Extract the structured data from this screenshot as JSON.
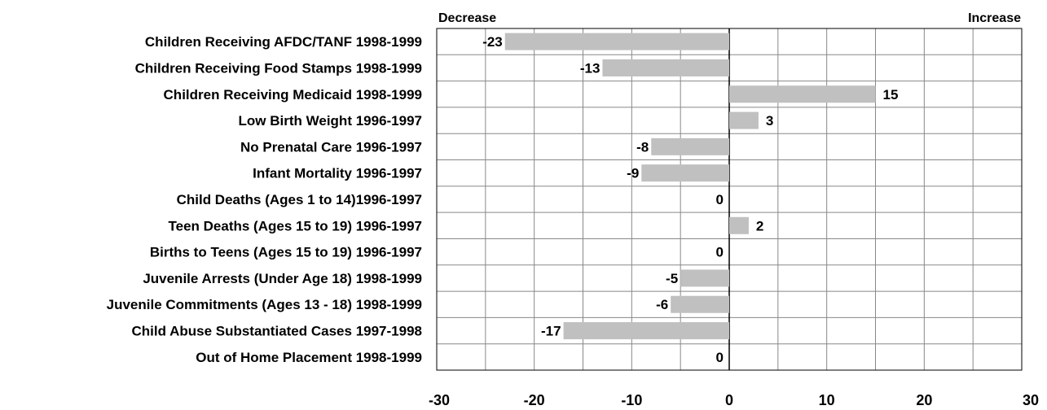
{
  "chart_data": {
    "type": "bar",
    "orientation": "horizontal",
    "categories": [
      "Children Receiving AFDC/TANF 1998-1999",
      "Children Receiving Food Stamps 1998-1999",
      "Children Receiving Medicaid 1998-1999",
      "Low Birth Weight 1996-1997",
      "No Prenatal Care 1996-1997",
      "Infant Mortality 1996-1997",
      "Child Deaths (Ages 1 to 14)1996-1997",
      "Teen Deaths (Ages 15 to 19) 1996-1997",
      "Births to Teens (Ages 15 to 19) 1996-1997",
      "Juvenile Arrests (Under Age 18) 1998-1999",
      "Juvenile Commitments (Ages 13 - 18) 1998-1999",
      "Child Abuse Substantiated Cases 1997-1998",
      "Out of Home Placement 1998-1999"
    ],
    "values": [
      -23,
      -13,
      15,
      3,
      -8,
      -9,
      0,
      2,
      0,
      -5,
      -6,
      -17,
      0
    ],
    "data_labels": [
      "-23",
      "-13",
      "15",
      "3",
      "-8",
      "-9",
      "0",
      "2",
      "0",
      "-5",
      "-6",
      "-17",
      "0"
    ],
    "xlim": [
      -30,
      30
    ],
    "x_ticks": [
      -30,
      -20,
      -10,
      0,
      10,
      20,
      30
    ],
    "x_tick_labels": [
      "-30",
      "-20",
      "-10",
      "0",
      "10",
      "20",
      "30"
    ],
    "x_minor_gridline_step": 5,
    "grid": true,
    "direction_labels": {
      "left": "Decrease",
      "right": "Increase"
    },
    "title": "",
    "xlabel": "",
    "ylabel": "",
    "colors": {
      "bar": "#c0c0c0",
      "grid": "#888888",
      "axis": "#000000",
      "text": "#000000"
    }
  }
}
